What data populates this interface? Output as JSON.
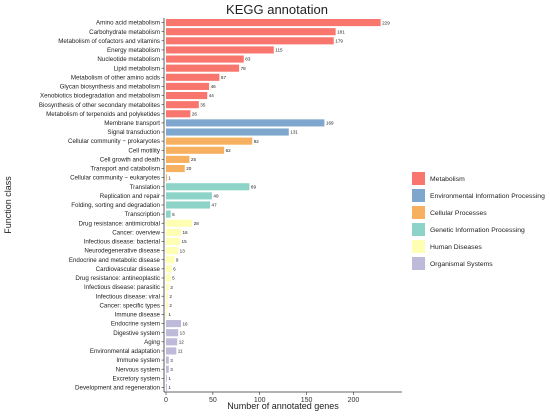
{
  "chart_data": {
    "type": "bar",
    "orientation": "horizontal",
    "title": "KEGG annotation",
    "xlabel": "Number of annotated genes",
    "ylabel": "Function class",
    "xlim": [
      0,
      239
    ],
    "xticks": [
      0,
      50,
      100,
      150,
      200
    ],
    "grid": false,
    "legend_position": "right",
    "groups": [
      {
        "name": "Metabolism",
        "color": "#F8766D"
      },
      {
        "name": "Environmental Information Processing",
        "color": "#7FA7CD"
      },
      {
        "name": "Cellular Processes",
        "color": "#F6B05F"
      },
      {
        "name": "Genetic Information Processing",
        "color": "#8DD3C7"
      },
      {
        "name": "Human Diseases",
        "color": "#FFFFB3"
      },
      {
        "name": "Organismal Systems",
        "color": "#BEBADA"
      }
    ],
    "bars": [
      {
        "label": "Amino acid metabolism",
        "value": 229,
        "group": 0
      },
      {
        "label": "Carbohydrate metabolism",
        "value": 181,
        "group": 0
      },
      {
        "label": "Metabolism of cofactors and vitamins",
        "value": 179,
        "group": 0
      },
      {
        "label": "Energy metabolism",
        "value": 115,
        "group": 0
      },
      {
        "label": "Nucleotide metabolism",
        "value": 83,
        "group": 0
      },
      {
        "label": "Lipid metabolism",
        "value": 78,
        "group": 0
      },
      {
        "label": "Metabolism of other amino acids",
        "value": 57,
        "group": 0
      },
      {
        "label": "Glycan biosynthesis and metabolism",
        "value": 46,
        "group": 0
      },
      {
        "label": "Xenobiotics biodegradation and metabolism",
        "value": 44,
        "group": 0
      },
      {
        "label": "Biosynthesis of other secondary metabolites",
        "value": 35,
        "group": 0
      },
      {
        "label": "Metabolism of terpenoids and polyketides",
        "value": 26,
        "group": 0
      },
      {
        "label": "Membrane transport",
        "value": 169,
        "group": 1
      },
      {
        "label": "Signal transduction",
        "value": 131,
        "group": 1
      },
      {
        "label": "Cellular community − prokaryotes",
        "value": 92,
        "group": 2
      },
      {
        "label": "Cell motility",
        "value": 62,
        "group": 2
      },
      {
        "label": "Cell growth and death",
        "value": 25,
        "group": 2
      },
      {
        "label": "Transport and catabolism",
        "value": 20,
        "group": 2
      },
      {
        "label": "Cellular community − eukaryotes",
        "value": 1,
        "group": 2
      },
      {
        "label": "Translation",
        "value": 89,
        "group": 3
      },
      {
        "label": "Replication and repair",
        "value": 49,
        "group": 3
      },
      {
        "label": "Folding, sorting and degradation",
        "value": 47,
        "group": 3
      },
      {
        "label": "Transcription",
        "value": 5,
        "group": 3
      },
      {
        "label": "Drug resistance: antimicrobial",
        "value": 28,
        "group": 4
      },
      {
        "label": "Cancer: overview",
        "value": 16,
        "group": 4
      },
      {
        "label": "Infectious disease: bacterial",
        "value": 15,
        "group": 4
      },
      {
        "label": "Neurodegenerative disease",
        "value": 13,
        "group": 4
      },
      {
        "label": "Endocrine and metabolic disease",
        "value": 9,
        "group": 4
      },
      {
        "label": "Cardiovascular disease",
        "value": 6,
        "group": 4
      },
      {
        "label": "Drug resistance: antineoplastic",
        "value": 5,
        "group": 4
      },
      {
        "label": "Infectious disease: parasitic",
        "value": 3,
        "group": 4
      },
      {
        "label": "Infectious disease: viral",
        "value": 2,
        "group": 4
      },
      {
        "label": "Cancer: specific types",
        "value": 2,
        "group": 4
      },
      {
        "label": "Immune disease",
        "value": 1,
        "group": 4
      },
      {
        "label": "Endocrine system",
        "value": 16,
        "group": 5
      },
      {
        "label": "Digestive system",
        "value": 13,
        "group": 5
      },
      {
        "label": "Aging",
        "value": 12,
        "group": 5
      },
      {
        "label": "Environmental adaptation",
        "value": 11,
        "group": 5
      },
      {
        "label": "Immune system",
        "value": 3,
        "group": 5
      },
      {
        "label": "Nervous system",
        "value": 3,
        "group": 5
      },
      {
        "label": "Excretory system",
        "value": 1,
        "group": 5
      },
      {
        "label": "Development and regeneration",
        "value": 1,
        "group": 5
      }
    ]
  }
}
